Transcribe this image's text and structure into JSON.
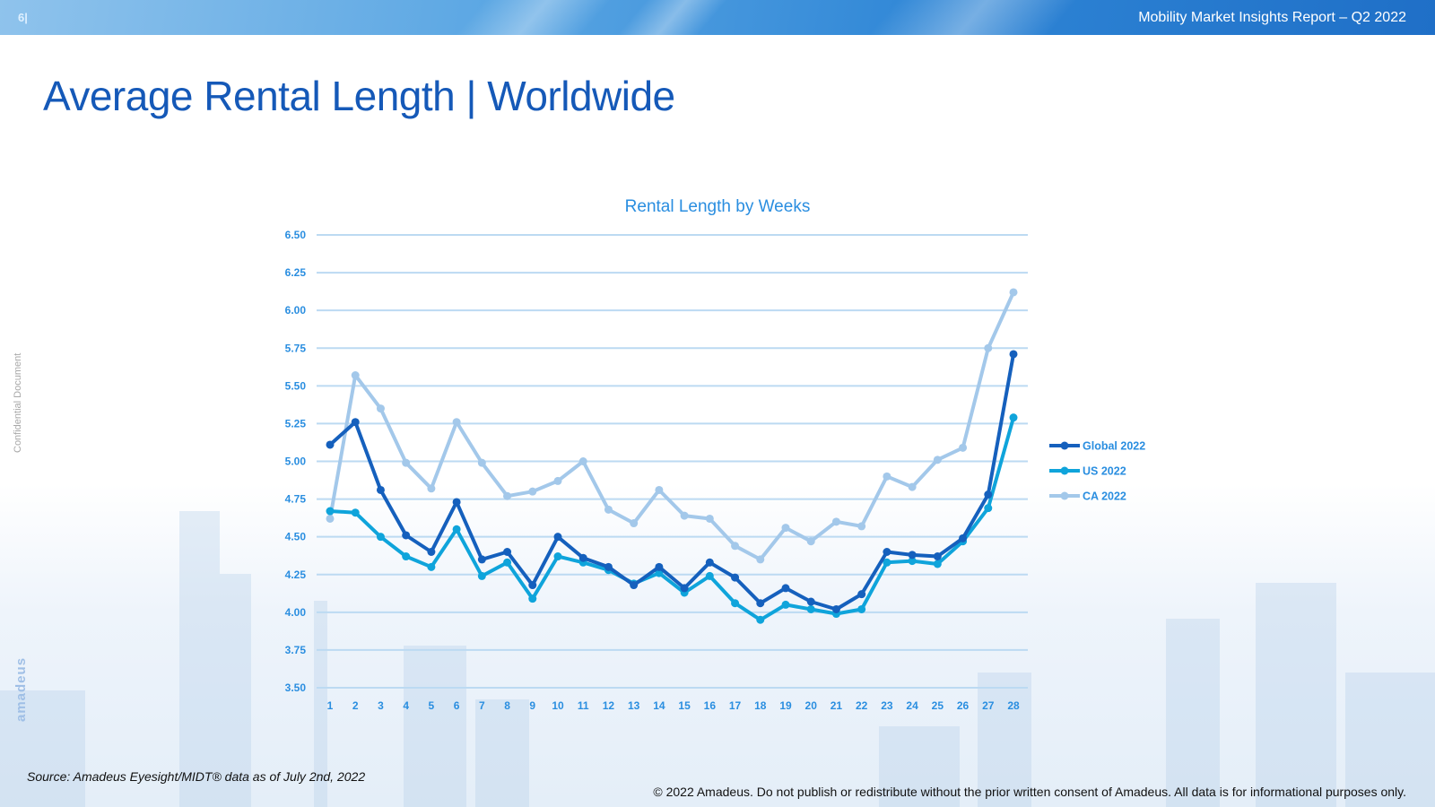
{
  "header": {
    "page_number": "6|",
    "report_title": "Mobility Market Insights Report – Q2 2022"
  },
  "title": "Average Rental Length | Worldwide",
  "side_label": "Confidential Document",
  "brand": "amadeus",
  "footer": {
    "source": "Source: Amadeus Eyesight/MIDT® data as of July 2nd, 2022",
    "copyright": "© 2022 Amadeus. Do not publish or redistribute without the prior written consent of Amadeus. All data is for informational purposes only."
  },
  "colors": {
    "title": "#1559b8",
    "global": "#1560bd",
    "us": "#0fa4db",
    "ca": "#a3c8ea",
    "gridline": "#bcdaf2",
    "tick_text": "#2a8ee0"
  },
  "chart_data": {
    "type": "line",
    "title": "Rental Length by Weeks",
    "xlabel": "",
    "ylabel": "",
    "ylim": [
      3.5,
      6.5
    ],
    "yticks": [
      "3.50",
      "3.75",
      "4.00",
      "4.25",
      "4.50",
      "4.75",
      "5.00",
      "5.25",
      "5.50",
      "5.75",
      "6.00",
      "6.25",
      "6.50"
    ],
    "grid": true,
    "legend_position": "right",
    "x": [
      1,
      2,
      3,
      4,
      5,
      6,
      7,
      8,
      9,
      10,
      11,
      12,
      13,
      14,
      15,
      16,
      17,
      18,
      19,
      20,
      21,
      22,
      23,
      24,
      25,
      26,
      27,
      28
    ],
    "series": [
      {
        "name": "Global 2022",
        "color": "#1560bd",
        "values": [
          5.11,
          5.26,
          4.81,
          4.51,
          4.4,
          4.73,
          4.35,
          4.4,
          4.18,
          4.5,
          4.36,
          4.3,
          4.18,
          4.3,
          4.16,
          4.33,
          4.23,
          4.06,
          4.16,
          4.07,
          4.02,
          4.12,
          4.4,
          4.38,
          4.37,
          4.49,
          4.78,
          5.71
        ]
      },
      {
        "name": "US 2022",
        "color": "#0fa4db",
        "values": [
          4.67,
          4.66,
          4.5,
          4.37,
          4.3,
          4.55,
          4.24,
          4.33,
          4.09,
          4.37,
          4.33,
          4.28,
          4.19,
          4.26,
          4.13,
          4.24,
          4.06,
          3.95,
          4.05,
          4.02,
          3.99,
          4.02,
          4.33,
          4.34,
          4.32,
          4.47,
          4.69,
          5.29
        ]
      },
      {
        "name": "CA 2022",
        "color": "#a3c8ea",
        "values": [
          4.62,
          5.57,
          5.35,
          4.99,
          4.82,
          5.26,
          4.99,
          4.77,
          4.8,
          4.87,
          5.0,
          4.68,
          4.59,
          4.81,
          4.64,
          4.62,
          4.44,
          4.35,
          4.56,
          4.47,
          4.6,
          4.57,
          4.9,
          4.83,
          5.01,
          5.09,
          5.75,
          6.12
        ]
      }
    ]
  }
}
